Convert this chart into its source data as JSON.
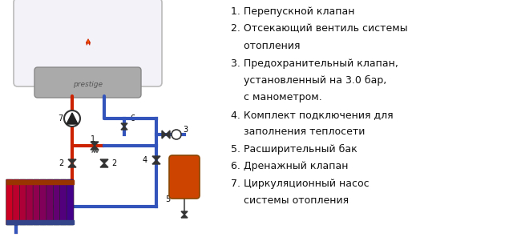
{
  "background_color": "#ffffff",
  "red_pipe_color": "#cc2200",
  "blue_pipe_color": "#3355bb",
  "text_color": "#111111",
  "pipe_lw": 3.0,
  "legend_lines": [
    "1. Перепускной клапан",
    "2. Отсекающий вентиль системы",
    "    отопления",
    "3. Предохранительный клапан,",
    "    установленный на 3.0 бар,",
    "    с манометром.",
    "4. Комплект подключения для",
    "    заполнения теплосети",
    "5. Расширительный бак",
    "6. Дренажный клапан",
    "7. Циркуляционный насос",
    "    системы отопления"
  ]
}
